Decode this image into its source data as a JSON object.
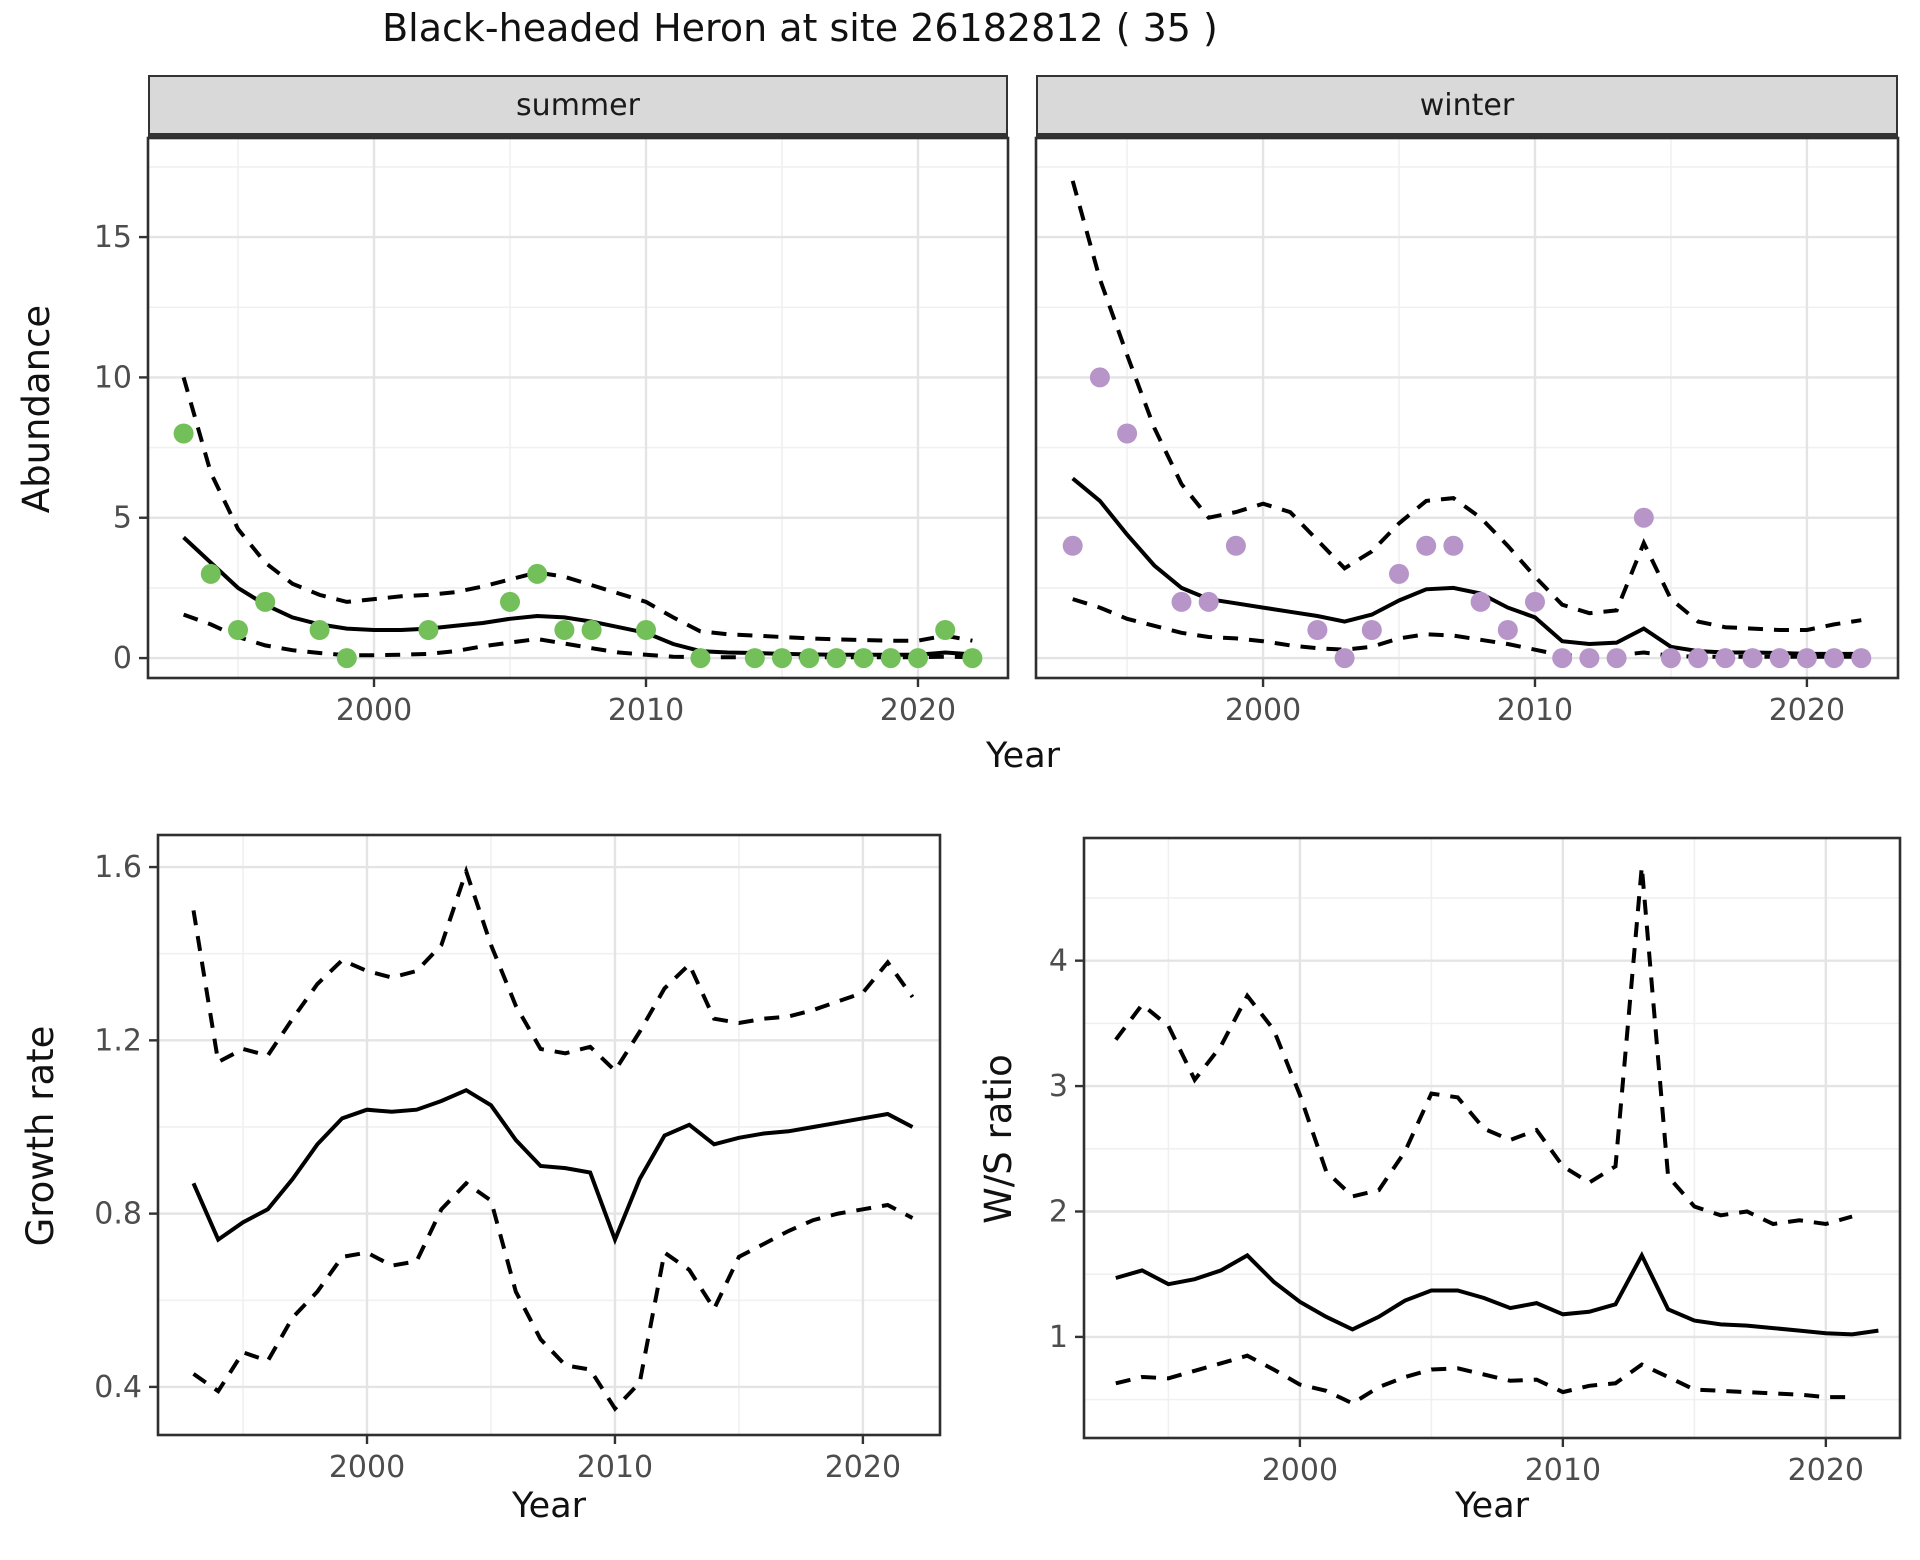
{
  "title": "Black-headed Heron at site 26182812 ( 35 )",
  "site_label": "26182812 ( 35 )",
  "facets": [
    "summer",
    "winter"
  ],
  "labels": {
    "abundance": "Abundance",
    "year": "Year",
    "growth": "Growth rate",
    "ws": "W/S ratio"
  },
  "colors": {
    "summer_point": "#73bf5a",
    "winter_point": "#b795c8",
    "line": "#000000",
    "strip_bg": "#d9d9d9",
    "grid_major": "#e4e4e4",
    "grid_minor": "#f0f0f0",
    "axis_text": "#4d4d4d",
    "panel_border": "#2f2f2f"
  },
  "chart_data": [
    {
      "id": "abundance_summer",
      "type": "line",
      "facet_label": "summer",
      "xlabel": "Year",
      "ylabel": "Abundance",
      "xlim": [
        1991.69,
        2023.31
      ],
      "ylim": [
        -0.71,
        18.53
      ],
      "x_ticks": [
        2000,
        2010,
        2020
      ],
      "x_minor": [
        1995,
        2005,
        2015
      ],
      "y_ticks": [
        0,
        5,
        10,
        15
      ],
      "y_minor": [
        2.5,
        7.5,
        12.5,
        17.5
      ],
      "grid": true,
      "series": [
        {
          "name": "fit",
          "style": "solid",
          "x": [
            1993,
            1994,
            1995,
            1996,
            1997,
            1998,
            1999,
            2000,
            2001,
            2002,
            2003,
            2004,
            2005,
            2006,
            2007,
            2008,
            2009,
            2010,
            2011,
            2012,
            2013,
            2014,
            2015,
            2016,
            2017,
            2018,
            2019,
            2020,
            2021,
            2022
          ],
          "y": [
            4.3,
            3.4,
            2.5,
            1.9,
            1.45,
            1.2,
            1.05,
            1.0,
            1.0,
            1.05,
            1.15,
            1.25,
            1.4,
            1.5,
            1.45,
            1.3,
            1.1,
            0.9,
            0.5,
            0.25,
            0.2,
            0.18,
            0.15,
            0.13,
            0.12,
            0.12,
            0.12,
            0.12,
            0.2,
            0.13
          ]
        },
        {
          "name": "upper_ci",
          "style": "dashed",
          "x": [
            1993,
            1994,
            1995,
            1996,
            1997,
            1998,
            1999,
            2000,
            2001,
            2002,
            2003,
            2004,
            2005,
            2006,
            2007,
            2008,
            2009,
            2010,
            2011,
            2012,
            2013,
            2014,
            2015,
            2016,
            2017,
            2018,
            2019,
            2020,
            2021,
            2022
          ],
          "y": [
            10.0,
            6.6,
            4.6,
            3.4,
            2.65,
            2.25,
            2.0,
            2.1,
            2.2,
            2.25,
            2.35,
            2.55,
            2.8,
            3.05,
            2.9,
            2.6,
            2.3,
            2.0,
            1.45,
            0.95,
            0.85,
            0.8,
            0.75,
            0.7,
            0.67,
            0.64,
            0.62,
            0.62,
            0.8,
            0.62
          ]
        },
        {
          "name": "lower_ci",
          "style": "dashed",
          "x": [
            1993,
            1994,
            1995,
            1996,
            1997,
            1998,
            1999,
            2000,
            2001,
            2002,
            2003,
            2004,
            2005,
            2006,
            2007,
            2008,
            2009,
            2010,
            2011,
            2012,
            2013,
            2014,
            2015,
            2016,
            2017,
            2018,
            2019,
            2020,
            2021,
            2022
          ],
          "y": [
            1.55,
            1.2,
            0.75,
            0.45,
            0.28,
            0.18,
            0.1,
            0.1,
            0.12,
            0.15,
            0.25,
            0.42,
            0.55,
            0.68,
            0.52,
            0.35,
            0.2,
            0.12,
            0.05,
            0.03,
            0.03,
            0.03,
            0.03,
            0.03,
            0.03,
            0.03,
            0.03,
            0.03,
            0.05,
            0.03
          ]
        }
      ],
      "points": {
        "name": "observed_counts",
        "color_key": "summer_point",
        "x": [
          1993,
          1994,
          1995,
          1996,
          1998,
          1999,
          2002,
          2005,
          2006,
          2007,
          2008,
          2010,
          2012,
          2014,
          2015,
          2016,
          2017,
          2018,
          2019,
          2020,
          2021,
          2022
        ],
        "y": [
          8,
          3,
          1,
          2,
          1,
          0,
          1,
          2,
          3,
          1,
          1,
          1,
          0,
          0,
          0,
          0,
          0,
          0,
          0,
          0,
          1,
          0
        ]
      }
    },
    {
      "id": "abundance_winter",
      "type": "line",
      "facet_label": "winter",
      "xlabel": "Year",
      "ylabel": "Abundance",
      "xlim": [
        1991.65,
        2023.35
      ],
      "ylim": [
        -0.71,
        18.53
      ],
      "x_ticks": [
        2000,
        2010,
        2020
      ],
      "x_minor": [
        1995,
        2005,
        2015
      ],
      "y_ticks": [
        0,
        5,
        10,
        15
      ],
      "y_minor": [
        2.5,
        7.5,
        12.5,
        17.5
      ],
      "grid": true,
      "series": [
        {
          "name": "fit",
          "style": "solid",
          "x": [
            1993,
            1994,
            1995,
            1996,
            1997,
            1998,
            1999,
            2000,
            2001,
            2002,
            2003,
            2004,
            2005,
            2006,
            2007,
            2008,
            2009,
            2010,
            2011,
            2012,
            2013,
            2014,
            2015,
            2016,
            2017,
            2018,
            2019,
            2020,
            2021,
            2022
          ],
          "y": [
            6.4,
            5.6,
            4.4,
            3.3,
            2.5,
            2.1,
            1.95,
            1.8,
            1.65,
            1.5,
            1.3,
            1.55,
            2.05,
            2.45,
            2.5,
            2.3,
            1.8,
            1.45,
            0.6,
            0.5,
            0.55,
            1.05,
            0.4,
            0.25,
            0.2,
            0.2,
            0.18,
            0.15,
            0.15,
            0.15
          ]
        },
        {
          "name": "upper_ci",
          "style": "dashed",
          "x": [
            1993,
            1994,
            1995,
            1996,
            1997,
            1998,
            1999,
            2000,
            2001,
            2002,
            2003,
            2004,
            2005,
            2006,
            2007,
            2008,
            2009,
            2010,
            2011,
            2012,
            2013,
            2014,
            2015,
            2016,
            2017,
            2018,
            2019,
            2020,
            2021,
            2022
          ],
          "y": [
            17.0,
            13.5,
            10.8,
            8.2,
            6.2,
            5.0,
            5.2,
            5.5,
            5.2,
            4.2,
            3.2,
            3.8,
            4.8,
            5.6,
            5.7,
            5.0,
            4.0,
            2.9,
            1.9,
            1.6,
            1.7,
            4.1,
            2.1,
            1.3,
            1.1,
            1.05,
            1.0,
            1.0,
            1.2,
            1.35
          ]
        },
        {
          "name": "lower_ci",
          "style": "dashed",
          "x": [
            1993,
            1994,
            1995,
            1996,
            1997,
            1998,
            1999,
            2000,
            2001,
            2002,
            2003,
            2004,
            2005,
            2006,
            2007,
            2008,
            2009,
            2010,
            2011,
            2012,
            2013,
            2014,
            2015,
            2016,
            2017,
            2018,
            2019,
            2020,
            2021,
            2022
          ],
          "y": [
            2.1,
            1.8,
            1.4,
            1.15,
            0.9,
            0.75,
            0.7,
            0.6,
            0.45,
            0.35,
            0.3,
            0.4,
            0.7,
            0.85,
            0.8,
            0.65,
            0.5,
            0.3,
            0.1,
            0.08,
            0.1,
            0.2,
            0.08,
            0.05,
            0.05,
            0.05,
            0.05,
            0.05,
            0.05,
            0.05
          ]
        }
      ],
      "points": {
        "name": "observed_counts",
        "color_key": "winter_point",
        "x": [
          1993,
          1994,
          1995,
          1997,
          1998,
          1999,
          2002,
          2003,
          2004,
          2005,
          2006,
          2007,
          2008,
          2009,
          2010,
          2011,
          2012,
          2013,
          2014,
          2015,
          2016,
          2017,
          2018,
          2019,
          2020,
          2021,
          2022
        ],
        "y": [
          4,
          10,
          8,
          2,
          2,
          4,
          1,
          0,
          1,
          3,
          4,
          4,
          2,
          1,
          2,
          0,
          0,
          0,
          5,
          0,
          0,
          0,
          0,
          0,
          0,
          0,
          0
        ]
      }
    },
    {
      "id": "growth_rate",
      "type": "line",
      "xlabel": "Year",
      "ylabel": "Growth rate",
      "xlim": [
        1991.57,
        2023.11
      ],
      "ylim": [
        0.289,
        1.674
      ],
      "x_ticks": [
        2000,
        2010,
        2020
      ],
      "x_minor": [
        1995,
        2005,
        2015
      ],
      "y_ticks": [
        0.4,
        0.8,
        1.2,
        1.6
      ],
      "y_minor": [
        0.6,
        1.0,
        1.4
      ],
      "grid": true,
      "series": [
        {
          "name": "fit",
          "style": "solid",
          "x": [
            1993,
            1994,
            1995,
            1996,
            1997,
            1998,
            1999,
            2000,
            2001,
            2002,
            2003,
            2004,
            2005,
            2006,
            2007,
            2008,
            2009,
            2010,
            2011,
            2012,
            2013,
            2014,
            2015,
            2016,
            2017,
            2018,
            2019,
            2020,
            2021,
            2022
          ],
          "y": [
            0.87,
            0.74,
            0.78,
            0.81,
            0.88,
            0.96,
            1.02,
            1.04,
            1.035,
            1.04,
            1.06,
            1.085,
            1.05,
            0.97,
            0.91,
            0.905,
            0.895,
            0.74,
            0.88,
            0.98,
            1.005,
            0.96,
            0.975,
            0.985,
            0.99,
            1.0,
            1.01,
            1.02,
            1.03,
            1.0
          ]
        },
        {
          "name": "upper_ci",
          "style": "dashed",
          "x": [
            1993,
            1994,
            1995,
            1996,
            1997,
            1998,
            1999,
            2000,
            2001,
            2002,
            2003,
            2004,
            2005,
            2006,
            2007,
            2008,
            2009,
            2010,
            2011,
            2012,
            2013,
            2014,
            2015,
            2016,
            2017,
            2018,
            2019,
            2020,
            2021,
            2022
          ],
          "y": [
            1.5,
            1.15,
            1.18,
            1.165,
            1.25,
            1.33,
            1.385,
            1.36,
            1.345,
            1.36,
            1.42,
            1.59,
            1.42,
            1.28,
            1.18,
            1.17,
            1.185,
            1.13,
            1.22,
            1.32,
            1.375,
            1.25,
            1.24,
            1.25,
            1.255,
            1.27,
            1.29,
            1.31,
            1.38,
            1.3
          ]
        },
        {
          "name": "lower_ci",
          "style": "dashed",
          "x": [
            1993,
            1994,
            1995,
            1996,
            1997,
            1998,
            1999,
            2000,
            2001,
            2002,
            2003,
            2004,
            2005,
            2006,
            2007,
            2008,
            2009,
            2010,
            2011,
            2012,
            2013,
            2014,
            2015,
            2016,
            2017,
            2018,
            2019,
            2020,
            2021,
            2022
          ],
          "y": [
            0.43,
            0.39,
            0.48,
            0.46,
            0.56,
            0.62,
            0.7,
            0.71,
            0.68,
            0.69,
            0.81,
            0.87,
            0.83,
            0.62,
            0.51,
            0.45,
            0.44,
            0.35,
            0.41,
            0.71,
            0.67,
            0.58,
            0.7,
            0.73,
            0.76,
            0.785,
            0.8,
            0.81,
            0.82,
            0.79
          ]
        }
      ]
    },
    {
      "id": "ws_ratio",
      "type": "line",
      "xlabel": "Year",
      "ylabel": "W/S ratio",
      "xlim": [
        1991.79,
        2022.82
      ],
      "ylim": [
        0.194,
        4.978
      ],
      "x_ticks": [
        2000,
        2010,
        2020
      ],
      "x_minor": [
        1995,
        2005,
        2015
      ],
      "y_ticks": [
        1,
        2,
        3,
        4
      ],
      "y_minor": [
        0.5,
        1.5,
        2.5,
        3.5,
        4.5
      ],
      "grid": true,
      "series": [
        {
          "name": "fit",
          "style": "solid",
          "x": [
            1993,
            1994,
            1995,
            1996,
            1997,
            1998,
            1999,
            2000,
            2001,
            2002,
            2003,
            2004,
            2005,
            2006,
            2007,
            2008,
            2009,
            2010,
            2011,
            2012,
            2013,
            2014,
            2015,
            2016,
            2017,
            2018,
            2019,
            2020,
            2021,
            2022
          ],
          "y": [
            1.47,
            1.53,
            1.42,
            1.46,
            1.53,
            1.65,
            1.44,
            1.28,
            1.16,
            1.06,
            1.16,
            1.29,
            1.37,
            1.37,
            1.31,
            1.23,
            1.27,
            1.18,
            1.2,
            1.26,
            1.65,
            1.22,
            1.13,
            1.1,
            1.09,
            1.07,
            1.05,
            1.03,
            1.02,
            1.05
          ]
        },
        {
          "name": "upper_ci",
          "style": "dashed",
          "x": [
            1993,
            1994,
            1995,
            1996,
            1997,
            1998,
            1999,
            2000,
            2001,
            2002,
            2003,
            2004,
            2005,
            2006,
            2007,
            2008,
            2009,
            2010,
            2011,
            2012,
            2013,
            2014,
            2015,
            2016,
            2017,
            2018,
            2019,
            2020,
            2021
          ],
          "y": [
            3.37,
            3.65,
            3.48,
            3.05,
            3.32,
            3.72,
            3.45,
            2.93,
            2.32,
            2.12,
            2.17,
            2.48,
            2.94,
            2.91,
            2.66,
            2.57,
            2.65,
            2.36,
            2.23,
            2.36,
            4.75,
            2.28,
            2.04,
            1.97,
            2.0,
            1.9,
            1.93,
            1.9,
            1.96
          ]
        },
        {
          "name": "lower_ci",
          "style": "dashed",
          "x": [
            1993,
            1994,
            1995,
            1996,
            1997,
            1998,
            1999,
            2000,
            2001,
            2002,
            2003,
            2004,
            2005,
            2006,
            2007,
            2008,
            2009,
            2010,
            2011,
            2012,
            2013,
            2014,
            2015,
            2016,
            2017,
            2018,
            2019,
            2020,
            2021
          ],
          "y": [
            0.63,
            0.68,
            0.67,
            0.73,
            0.79,
            0.85,
            0.74,
            0.62,
            0.57,
            0.47,
            0.6,
            0.68,
            0.74,
            0.75,
            0.7,
            0.65,
            0.66,
            0.56,
            0.61,
            0.63,
            0.78,
            0.68,
            0.58,
            0.57,
            0.56,
            0.55,
            0.54,
            0.52,
            0.52
          ]
        }
      ]
    }
  ]
}
